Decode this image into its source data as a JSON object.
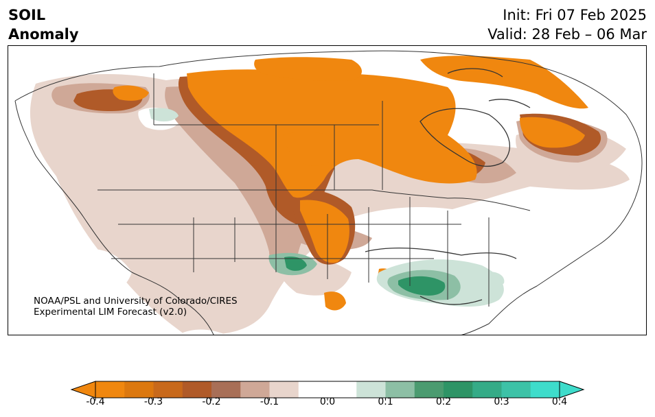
{
  "title": {
    "variable": "SOIL",
    "subtitle": "Anomaly",
    "init": "Init: Fri 07 Feb 2025",
    "valid": "Valid: 28 Feb – 06 Mar"
  },
  "credit": {
    "line1": "NOAA/PSL and University of Colorado/CIRES",
    "line2": "Experimental LIM Forecast (v2.0)"
  },
  "colorbar": {
    "ticks": [
      "-0.4",
      "-0.3",
      "-0.2",
      "-0.1",
      "0.0",
      "0.1",
      "0.2",
      "0.3",
      "0.4"
    ],
    "tick_values": [
      -0.4,
      -0.3,
      -0.2,
      -0.1,
      0.0,
      0.1,
      0.2,
      0.3,
      0.4
    ],
    "levels": [
      -0.4,
      -0.35,
      -0.3,
      -0.25,
      -0.2,
      -0.15,
      -0.1,
      -0.05,
      0.05,
      0.1,
      0.15,
      0.2,
      0.25,
      0.3,
      0.35,
      0.4
    ],
    "colors": [
      "#f0870f",
      "#dc780f",
      "#c8691b",
      "#b05a28",
      "#a86f57",
      "#cfa897",
      "#e8d5cc",
      "#ffffff",
      "#cde3d8",
      "#8dbfa5",
      "#4b9b70",
      "#2e9466",
      "#35ab87",
      "#3dc2a7",
      "#3edccb"
    ],
    "extend_low_color": "#f0870f",
    "extend_high_color": "#3edccb"
  },
  "map": {
    "region": "North America",
    "features": [
      "coastlines",
      "country borders",
      "state and province borders"
    ]
  }
}
